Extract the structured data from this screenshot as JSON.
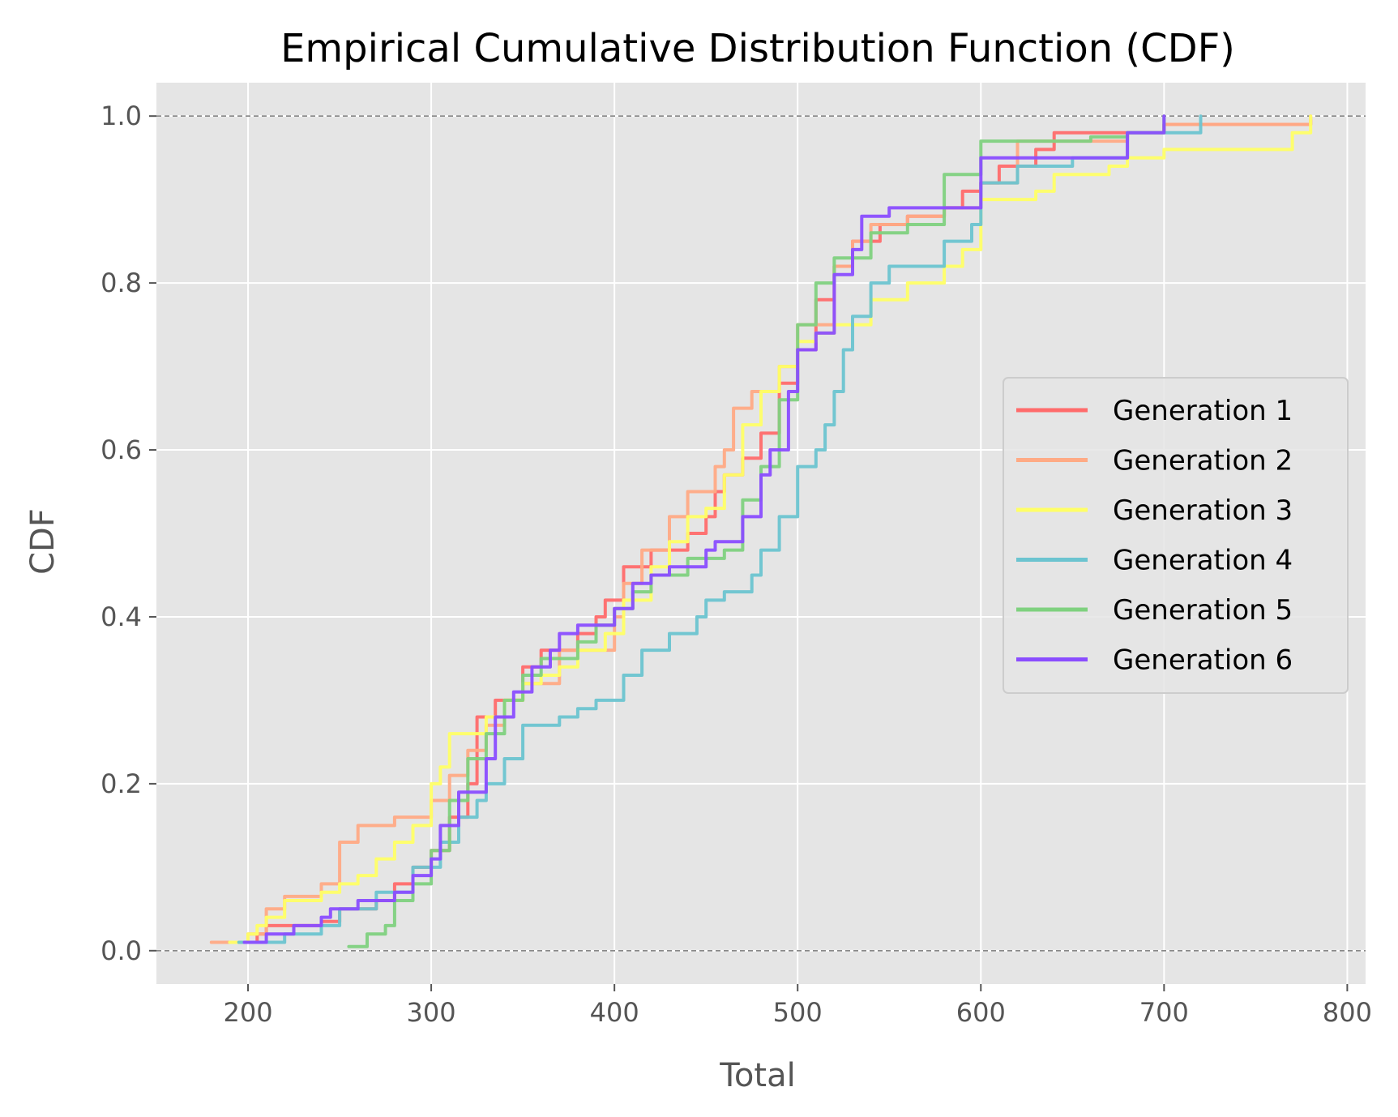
{
  "chart_data": {
    "type": "line",
    "title": "Empirical Cumulative Distribution Function (CDF)",
    "xlabel": "Total",
    "ylabel": "CDF",
    "xlim": [
      150,
      810
    ],
    "ylim": [
      -0.04,
      1.04
    ],
    "xticks": [
      200,
      300,
      400,
      500,
      600,
      700,
      800
    ],
    "yticks": [
      0.0,
      0.2,
      0.4,
      0.6,
      0.8,
      1.0
    ],
    "xtick_labels": [
      "200",
      "300",
      "400",
      "500",
      "600",
      "700",
      "800"
    ],
    "ytick_labels": [
      "0.0",
      "0.2",
      "0.4",
      "0.6",
      "0.8",
      "1.0"
    ],
    "reference_lines": [
      0.0,
      1.0
    ],
    "grid": true,
    "legend_position": "center-right",
    "background_color": "#e5e5e5",
    "series": [
      {
        "name": "Generation 1",
        "color": "#ff6b6b",
        "points": [
          [
            195,
            0.01
          ],
          [
            205,
            0.02
          ],
          [
            210,
            0.03
          ],
          [
            240,
            0.035
          ],
          [
            250,
            0.05
          ],
          [
            270,
            0.06
          ],
          [
            280,
            0.08
          ],
          [
            290,
            0.1
          ],
          [
            300,
            0.12
          ],
          [
            310,
            0.16
          ],
          [
            320,
            0.2
          ],
          [
            325,
            0.28
          ],
          [
            335,
            0.3
          ],
          [
            350,
            0.34
          ],
          [
            360,
            0.36
          ],
          [
            380,
            0.38
          ],
          [
            390,
            0.4
          ],
          [
            395,
            0.42
          ],
          [
            405,
            0.46
          ],
          [
            420,
            0.48
          ],
          [
            440,
            0.5
          ],
          [
            450,
            0.52
          ],
          [
            455,
            0.55
          ],
          [
            460,
            0.57
          ],
          [
            470,
            0.59
          ],
          [
            480,
            0.62
          ],
          [
            490,
            0.68
          ],
          [
            500,
            0.72
          ],
          [
            510,
            0.78
          ],
          [
            520,
            0.82
          ],
          [
            530,
            0.85
          ],
          [
            545,
            0.87
          ],
          [
            560,
            0.88
          ],
          [
            580,
            0.89
          ],
          [
            590,
            0.91
          ],
          [
            600,
            0.92
          ],
          [
            610,
            0.94
          ],
          [
            630,
            0.96
          ],
          [
            640,
            0.98
          ],
          [
            700,
            0.99
          ],
          [
            780,
            0.995
          ]
        ]
      },
      {
        "name": "Generation 2",
        "color": "#ffaa85",
        "points": [
          [
            180,
            0.01
          ],
          [
            200,
            0.02
          ],
          [
            210,
            0.05
          ],
          [
            220,
            0.065
          ],
          [
            240,
            0.08
          ],
          [
            250,
            0.13
          ],
          [
            260,
            0.15
          ],
          [
            280,
            0.16
          ],
          [
            300,
            0.18
          ],
          [
            310,
            0.21
          ],
          [
            320,
            0.24
          ],
          [
            330,
            0.27
          ],
          [
            340,
            0.3
          ],
          [
            350,
            0.32
          ],
          [
            370,
            0.36
          ],
          [
            400,
            0.4
          ],
          [
            405,
            0.44
          ],
          [
            415,
            0.48
          ],
          [
            430,
            0.52
          ],
          [
            440,
            0.55
          ],
          [
            455,
            0.58
          ],
          [
            460,
            0.6
          ],
          [
            465,
            0.65
          ],
          [
            475,
            0.67
          ],
          [
            490,
            0.7
          ],
          [
            500,
            0.75
          ],
          [
            520,
            0.82
          ],
          [
            530,
            0.85
          ],
          [
            540,
            0.87
          ],
          [
            560,
            0.88
          ],
          [
            580,
            0.89
          ],
          [
            600,
            0.92
          ],
          [
            620,
            0.97
          ],
          [
            680,
            0.98
          ],
          [
            700,
            0.99
          ],
          [
            780,
            1.0
          ]
        ]
      },
      {
        "name": "Generation 3",
        "color": "#ffff66",
        "points": [
          [
            190,
            0.01
          ],
          [
            200,
            0.02
          ],
          [
            205,
            0.03
          ],
          [
            210,
            0.04
          ],
          [
            220,
            0.06
          ],
          [
            240,
            0.07
          ],
          [
            250,
            0.08
          ],
          [
            260,
            0.09
          ],
          [
            270,
            0.11
          ],
          [
            280,
            0.13
          ],
          [
            290,
            0.15
          ],
          [
            300,
            0.2
          ],
          [
            305,
            0.22
          ],
          [
            310,
            0.26
          ],
          [
            320,
            0.26
          ],
          [
            330,
            0.28
          ],
          [
            340,
            0.3
          ],
          [
            350,
            0.32
          ],
          [
            360,
            0.33
          ],
          [
            370,
            0.34
          ],
          [
            380,
            0.36
          ],
          [
            395,
            0.38
          ],
          [
            405,
            0.42
          ],
          [
            420,
            0.46
          ],
          [
            430,
            0.49
          ],
          [
            440,
            0.52
          ],
          [
            450,
            0.53
          ],
          [
            460,
            0.57
          ],
          [
            470,
            0.63
          ],
          [
            480,
            0.67
          ],
          [
            490,
            0.7
          ],
          [
            500,
            0.73
          ],
          [
            510,
            0.74
          ],
          [
            520,
            0.75
          ],
          [
            540,
            0.78
          ],
          [
            560,
            0.8
          ],
          [
            580,
            0.82
          ],
          [
            590,
            0.84
          ],
          [
            600,
            0.9
          ],
          [
            630,
            0.91
          ],
          [
            640,
            0.93
          ],
          [
            670,
            0.94
          ],
          [
            680,
            0.95
          ],
          [
            700,
            0.96
          ],
          [
            770,
            0.98
          ],
          [
            780,
            1.0
          ]
        ]
      },
      {
        "name": "Generation 4",
        "color": "#6cc4d0",
        "points": [
          [
            195,
            0.01
          ],
          [
            220,
            0.02
          ],
          [
            240,
            0.03
          ],
          [
            250,
            0.05
          ],
          [
            270,
            0.07
          ],
          [
            290,
            0.1
          ],
          [
            305,
            0.13
          ],
          [
            315,
            0.16
          ],
          [
            325,
            0.18
          ],
          [
            330,
            0.2
          ],
          [
            340,
            0.23
          ],
          [
            350,
            0.27
          ],
          [
            370,
            0.28
          ],
          [
            380,
            0.29
          ],
          [
            390,
            0.3
          ],
          [
            405,
            0.33
          ],
          [
            415,
            0.36
          ],
          [
            430,
            0.38
          ],
          [
            445,
            0.4
          ],
          [
            450,
            0.42
          ],
          [
            460,
            0.43
          ],
          [
            475,
            0.45
          ],
          [
            480,
            0.48
          ],
          [
            490,
            0.52
          ],
          [
            500,
            0.58
          ],
          [
            510,
            0.6
          ],
          [
            515,
            0.63
          ],
          [
            520,
            0.67
          ],
          [
            525,
            0.72
          ],
          [
            530,
            0.76
          ],
          [
            540,
            0.8
          ],
          [
            550,
            0.82
          ],
          [
            580,
            0.85
          ],
          [
            595,
            0.87
          ],
          [
            600,
            0.92
          ],
          [
            620,
            0.94
          ],
          [
            650,
            0.95
          ],
          [
            680,
            0.98
          ],
          [
            720,
            1.0
          ]
        ]
      },
      {
        "name": "Generation 5",
        "color": "#7fd17f",
        "points": [
          [
            255,
            0.005
          ],
          [
            265,
            0.02
          ],
          [
            275,
            0.03
          ],
          [
            280,
            0.06
          ],
          [
            290,
            0.08
          ],
          [
            300,
            0.12
          ],
          [
            310,
            0.18
          ],
          [
            320,
            0.23
          ],
          [
            330,
            0.26
          ],
          [
            340,
            0.3
          ],
          [
            350,
            0.33
          ],
          [
            360,
            0.35
          ],
          [
            380,
            0.37
          ],
          [
            390,
            0.39
          ],
          [
            400,
            0.41
          ],
          [
            410,
            0.43
          ],
          [
            420,
            0.45
          ],
          [
            440,
            0.47
          ],
          [
            460,
            0.48
          ],
          [
            470,
            0.54
          ],
          [
            480,
            0.58
          ],
          [
            490,
            0.66
          ],
          [
            500,
            0.75
          ],
          [
            510,
            0.8
          ],
          [
            520,
            0.83
          ],
          [
            540,
            0.86
          ],
          [
            560,
            0.87
          ],
          [
            580,
            0.88
          ],
          [
            580,
            0.93
          ],
          [
            600,
            0.94
          ],
          [
            600,
            0.97
          ],
          [
            660,
            0.975
          ],
          [
            680,
            0.98
          ],
          [
            700,
            1.0
          ]
        ]
      },
      {
        "name": "Generation 6",
        "color": "#8a4dff",
        "points": [
          [
            198,
            0.01
          ],
          [
            210,
            0.02
          ],
          [
            225,
            0.03
          ],
          [
            240,
            0.04
          ],
          [
            245,
            0.05
          ],
          [
            260,
            0.06
          ],
          [
            280,
            0.07
          ],
          [
            290,
            0.09
          ],
          [
            300,
            0.11
          ],
          [
            305,
            0.15
          ],
          [
            315,
            0.19
          ],
          [
            330,
            0.23
          ],
          [
            335,
            0.28
          ],
          [
            345,
            0.31
          ],
          [
            355,
            0.34
          ],
          [
            365,
            0.36
          ],
          [
            370,
            0.38
          ],
          [
            380,
            0.39
          ],
          [
            400,
            0.41
          ],
          [
            410,
            0.44
          ],
          [
            420,
            0.45
          ],
          [
            430,
            0.46
          ],
          [
            450,
            0.48
          ],
          [
            455,
            0.49
          ],
          [
            470,
            0.52
          ],
          [
            480,
            0.57
          ],
          [
            485,
            0.6
          ],
          [
            495,
            0.61
          ],
          [
            495,
            0.67
          ],
          [
            500,
            0.72
          ],
          [
            510,
            0.74
          ],
          [
            520,
            0.77
          ],
          [
            520,
            0.81
          ],
          [
            530,
            0.84
          ],
          [
            535,
            0.88
          ],
          [
            550,
            0.89
          ],
          [
            600,
            0.9
          ],
          [
            600,
            0.95
          ],
          [
            680,
            0.96
          ],
          [
            680,
            0.98
          ],
          [
            700,
            1.0
          ]
        ]
      }
    ]
  }
}
